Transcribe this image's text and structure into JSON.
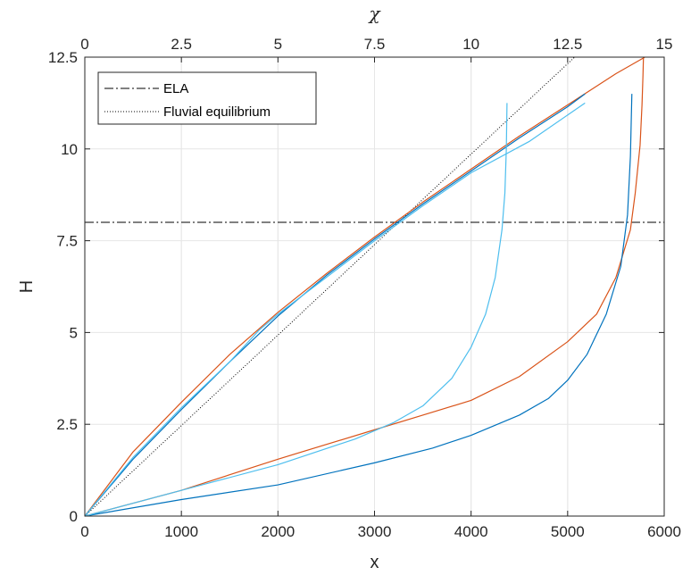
{
  "chart_data": {
    "type": "line",
    "xlabel": "x",
    "ylabel": "H",
    "x2label": "χ",
    "xlim": [
      0,
      6000
    ],
    "x2lim": [
      0,
      15
    ],
    "ylim": [
      0,
      12.5
    ],
    "grid": true,
    "legend_position": "top-left",
    "x_ticks": [
      "0",
      "1000",
      "2000",
      "3000",
      "4000",
      "5000",
      "6000"
    ],
    "x2_ticks": [
      "0",
      "2.5",
      "5",
      "7.5",
      "10",
      "12.5",
      "15"
    ],
    "y_ticks": [
      "0",
      "2.5",
      "5",
      "7.5",
      "10",
      "12.5"
    ],
    "legend": [
      {
        "label": "ELA",
        "style": "dash-dot"
      },
      {
        "label": "Fluvial equilibrium",
        "style": "dotted"
      }
    ],
    "ela": {
      "y": 8,
      "color": "#000000"
    },
    "fluvial_equilibrium": {
      "axis": "chi",
      "x": [
        0,
        12.68
      ],
      "y": [
        0,
        12.5
      ],
      "color": "#000000"
    },
    "series": [
      {
        "axis": "x",
        "color": "#D95319",
        "x": [
          0,
          500,
          1000,
          1500,
          2000,
          2500,
          3000,
          3500,
          4000,
          4500,
          5000,
          5500,
          5800
        ],
        "y": [
          0,
          1.75,
          3.1,
          4.4,
          5.55,
          6.6,
          7.6,
          8.55,
          9.45,
          10.35,
          11.2,
          12.05,
          12.5
        ]
      },
      {
        "axis": "x",
        "color": "#0072BD",
        "x": [
          0,
          500,
          1000,
          1500,
          2000,
          2500,
          3000,
          3500,
          4000,
          4500,
          5000,
          5180
        ],
        "y": [
          0,
          1.55,
          2.9,
          4.2,
          5.45,
          6.55,
          7.55,
          8.5,
          9.4,
          10.3,
          11.15,
          11.5
        ]
      },
      {
        "axis": "x",
        "color": "#4DBEEE",
        "x": [
          0,
          500,
          1000,
          1500,
          1800,
          2000,
          2500,
          3000,
          3500,
          4000,
          4600,
          5180
        ],
        "y": [
          0,
          1.6,
          2.95,
          4.2,
          5.05,
          5.5,
          6.5,
          7.5,
          8.45,
          9.35,
          10.2,
          11.25
        ]
      },
      {
        "axis": "x",
        "color": "#D95319",
        "x": [
          0,
          1000,
          2000,
          3000,
          3500,
          4000,
          4500,
          5000,
          5300,
          5500,
          5650,
          5700,
          5750,
          5770,
          5780,
          5785
        ],
        "y": [
          0,
          0.7,
          1.55,
          2.35,
          2.75,
          3.15,
          3.8,
          4.75,
          5.5,
          6.5,
          7.8,
          8.8,
          10.1,
          11.2,
          12.0,
          12.5
        ]
      },
      {
        "axis": "x",
        "color": "#0072BD",
        "x": [
          0,
          1000,
          2000,
          3000,
          3600,
          4000,
          4500,
          4800,
          5000,
          5200,
          5400,
          5550,
          5620,
          5650,
          5665
        ],
        "y": [
          0,
          0.45,
          0.85,
          1.45,
          1.85,
          2.2,
          2.75,
          3.2,
          3.7,
          4.4,
          5.5,
          6.8,
          8.2,
          9.8,
          11.5
        ]
      },
      {
        "axis": "x",
        "color": "#4DBEEE",
        "x": [
          0,
          1000,
          2000,
          2800,
          3200,
          3500,
          3800,
          4000,
          4150,
          4250,
          4320,
          4350,
          4365,
          4372
        ],
        "y": [
          0,
          0.7,
          1.4,
          2.1,
          2.55,
          3.0,
          3.75,
          4.6,
          5.5,
          6.5,
          7.8,
          8.8,
          10.0,
          11.25
        ]
      }
    ]
  }
}
